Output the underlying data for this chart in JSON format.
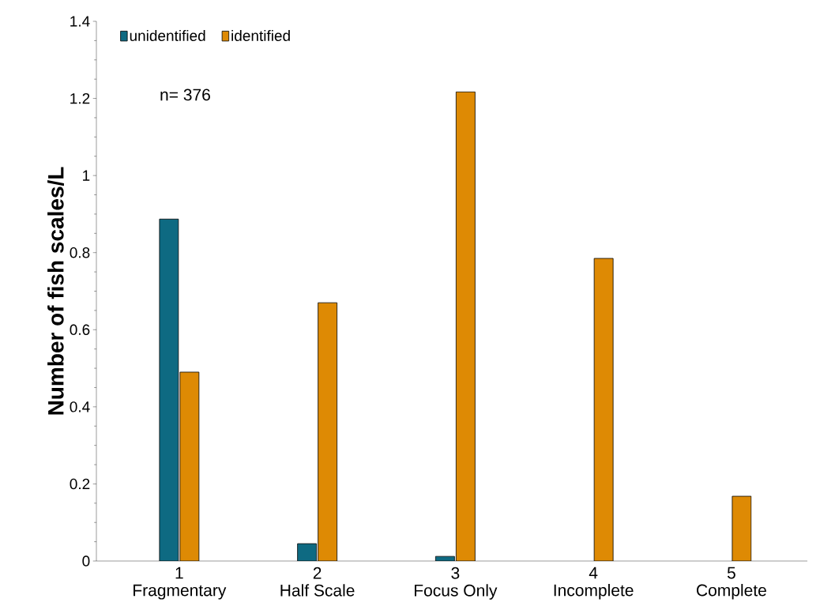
{
  "chart_data": {
    "type": "bar",
    "ylabel": "Number of fish scales/L",
    "categories": [
      "1\nFragmentary",
      "2\nHalf Scale",
      "3\nFocus Only",
      "4\nIncomplete",
      "5\nComplete"
    ],
    "series": [
      {
        "name": "unidentified",
        "color": "#0e6a82",
        "values": [
          0.887,
          0.045,
          0.012,
          null,
          null
        ]
      },
      {
        "name": "identified",
        "color": "#de8a04",
        "values": [
          0.49,
          0.67,
          1.217,
          0.785,
          0.168
        ]
      }
    ],
    "ylim": [
      0,
      1.4
    ],
    "yticks": [
      0,
      0.2,
      0.4,
      0.6,
      0.8,
      1,
      1.2,
      1.4
    ],
    "legend": "top left",
    "grid": false,
    "annotations": [
      "n= 376"
    ]
  }
}
